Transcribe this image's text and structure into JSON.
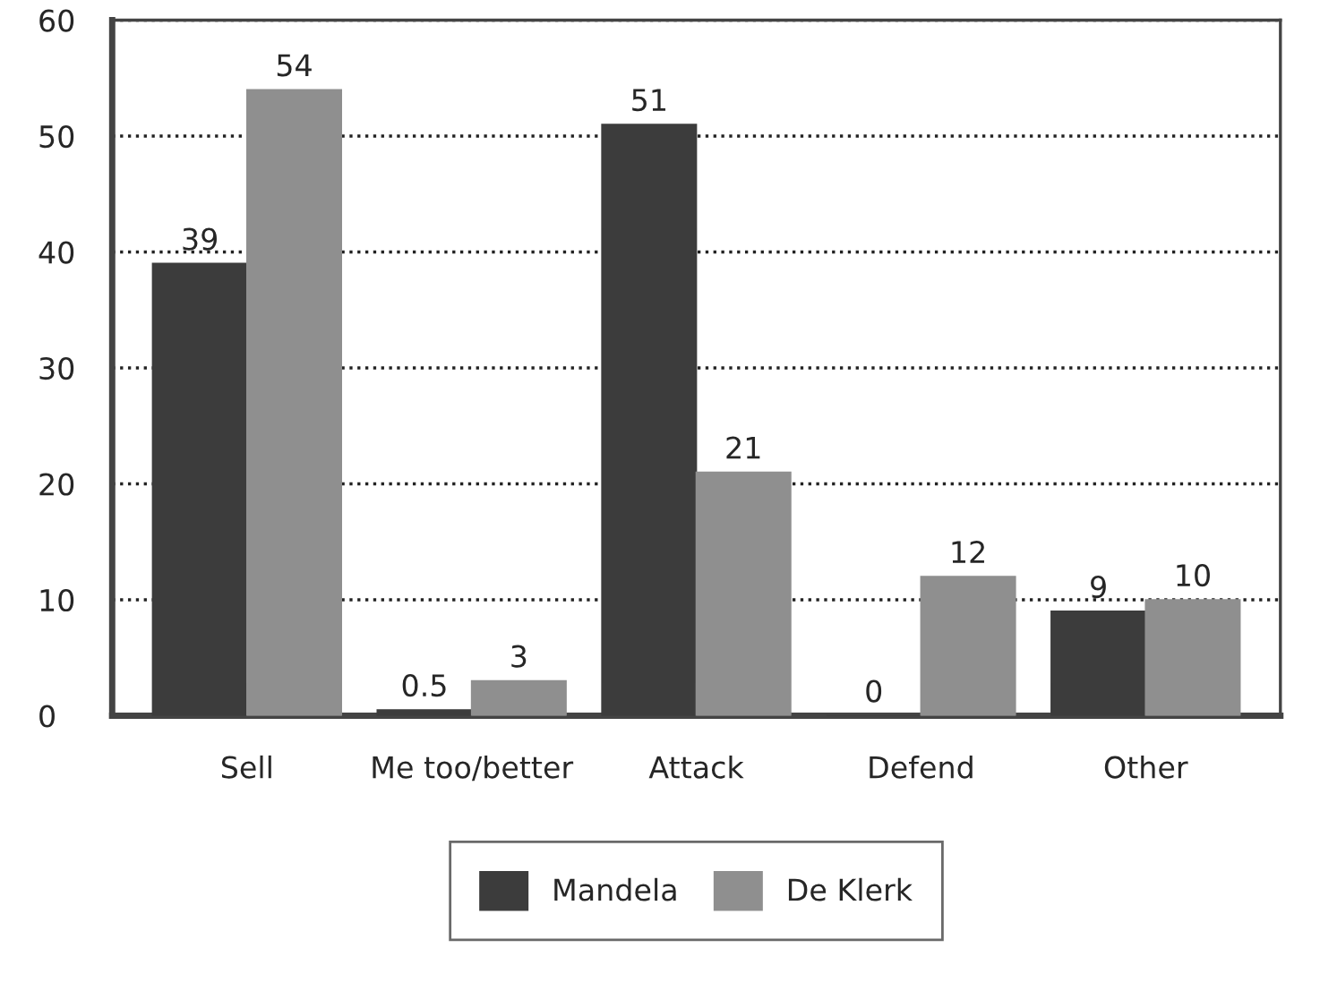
{
  "chart_data": {
    "type": "bar",
    "categories": [
      "Sell",
      "Me too/better",
      "Attack",
      "Defend",
      "Other"
    ],
    "series": [
      {
        "name": "Mandela",
        "color": "#3c3c3c",
        "values": [
          39,
          0.5,
          51,
          0,
          9
        ]
      },
      {
        "name": "De Klerk",
        "color": "#8f8f8f",
        "values": [
          54,
          3,
          21,
          12,
          10
        ]
      }
    ],
    "ylim": [
      0,
      60
    ],
    "yticks": [
      0,
      10,
      20,
      30,
      40,
      50,
      60
    ],
    "grid": "y",
    "legend": "bottom",
    "data_labels": true
  }
}
